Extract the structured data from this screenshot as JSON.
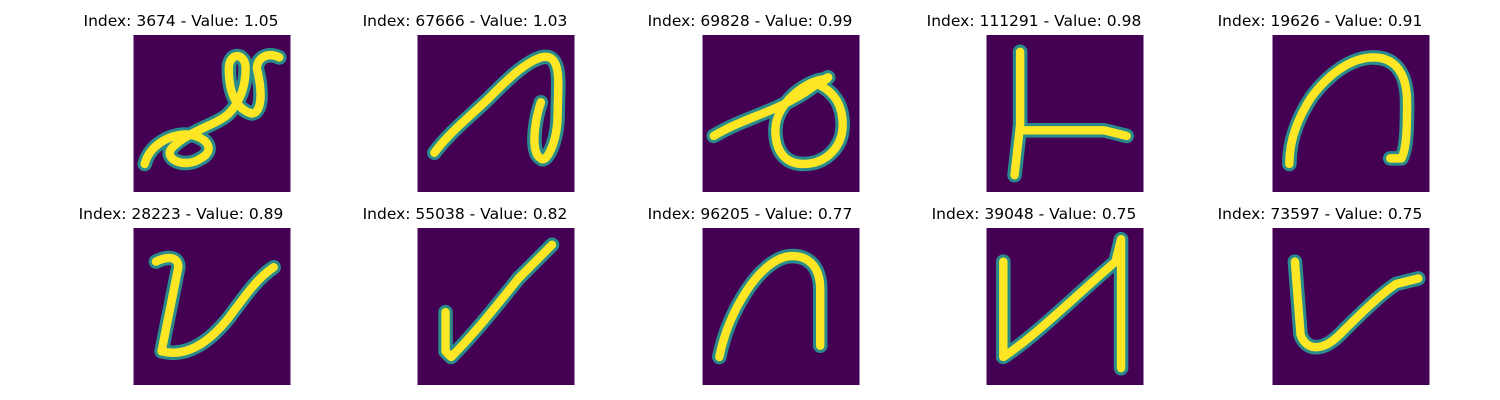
{
  "colors": {
    "background": "#440154",
    "stroke_outer": "#2a8b8d",
    "stroke_inner": "#fde725"
  },
  "panels": [
    {
      "title": "Index: 3674 - Value: 1.05",
      "index": 3674,
      "value": 1.05,
      "glyph": "loop-scribble"
    },
    {
      "title": "Index: 67666 - Value: 1.03",
      "index": 67666,
      "value": 1.03,
      "glyph": "hook-loop"
    },
    {
      "title": "Index: 69828 - Value: 0.99",
      "index": 69828,
      "value": 0.99,
      "glyph": "circle-with-line"
    },
    {
      "title": "Index: 111291 - Value: 0.98",
      "index": 111291,
      "value": 0.98,
      "glyph": "sideways-t"
    },
    {
      "title": "Index: 19626 - Value: 0.91",
      "index": 19626,
      "value": 0.91,
      "glyph": "arch"
    },
    {
      "title": "Index: 28223 - Value: 0.89",
      "index": 28223,
      "value": 0.89,
      "glyph": "check-v"
    },
    {
      "title": "Index: 55038 - Value: 0.82",
      "index": 55038,
      "value": 0.82,
      "glyph": "check-mark"
    },
    {
      "title": "Index: 96205 - Value: 0.77",
      "index": 96205,
      "value": 0.77,
      "glyph": "small-arch"
    },
    {
      "title": "Index: 39048 - Value: 0.75",
      "index": 39048,
      "value": 0.75,
      "glyph": "n-zigzag"
    },
    {
      "title": "Index: 73597 - Value: 0.75",
      "index": 73597,
      "value": 0.75,
      "glyph": "v-hook"
    }
  ]
}
